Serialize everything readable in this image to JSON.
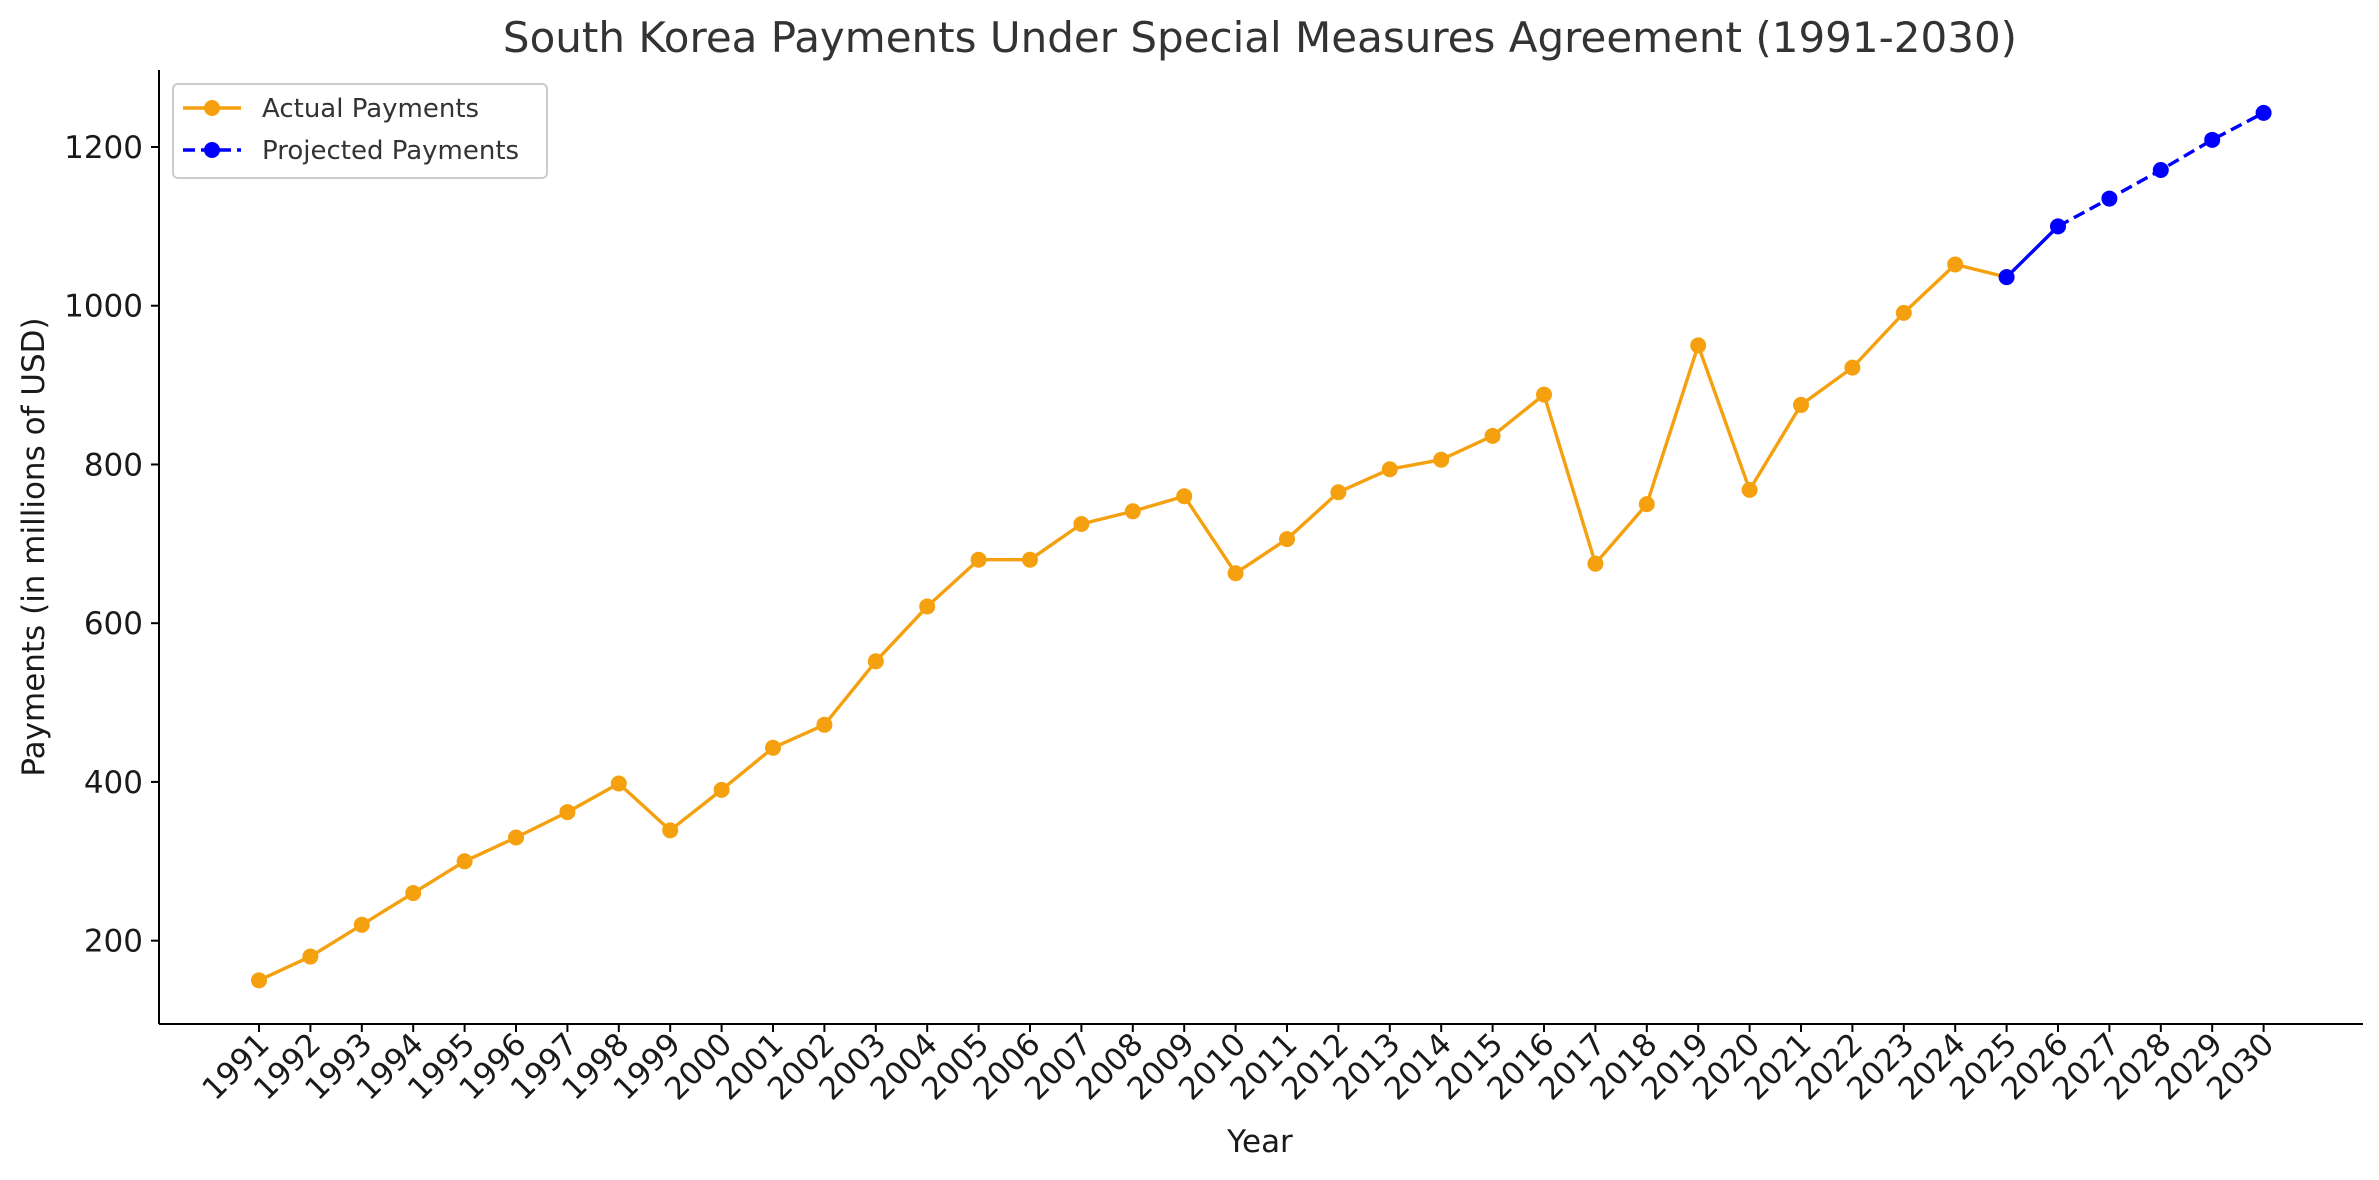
{
  "chart_data": {
    "type": "line",
    "title": "South Korea Payments Under Special Measures Agreement (1991-2030)",
    "xlabel": "Year",
    "ylabel": "Payments (in millions of USD)",
    "ylim": [
      95,
      1297
    ],
    "yticks": [
      200,
      400,
      600,
      800,
      1000,
      1200
    ],
    "grid": false,
    "legend_position": "top-left",
    "categories": [
      "1991",
      "1992",
      "1993",
      "1994",
      "1995",
      "1996",
      "1997",
      "1998",
      "1999",
      "2000",
      "2001",
      "2002",
      "2003",
      "2004",
      "2005",
      "2006",
      "2007",
      "2008",
      "2009",
      "2010",
      "2011",
      "2012",
      "2013",
      "2014",
      "2015",
      "2016",
      "2017",
      "2018",
      "2019",
      "2020",
      "2021",
      "2022",
      "2023",
      "2024",
      "2025",
      "2026",
      "2027",
      "2028",
      "2029",
      "2030"
    ],
    "series": [
      {
        "name": "Actual Payments",
        "color": "#f5a10f",
        "line_style": "solid",
        "marker": "circle",
        "x": [
          "1991",
          "1992",
          "1993",
          "1994",
          "1995",
          "1996",
          "1997",
          "1998",
          "1999",
          "2000",
          "2001",
          "2002",
          "2003",
          "2004",
          "2005",
          "2006",
          "2007",
          "2008",
          "2009",
          "2010",
          "2011",
          "2012",
          "2013",
          "2014",
          "2015",
          "2016",
          "2017",
          "2018",
          "2019",
          "2020",
          "2021",
          "2022",
          "2023",
          "2024",
          "2025"
        ],
        "values": [
          150,
          180,
          220,
          260,
          300,
          330,
          362,
          398,
          339,
          390,
          443,
          472,
          552,
          621,
          680,
          680,
          725,
          741,
          760,
          663,
          706,
          765,
          794,
          806,
          836,
          888,
          675,
          750,
          950,
          768,
          875,
          922,
          991,
          1052,
          1036
        ]
      },
      {
        "name": "Projected Payments",
        "color": "#0000ff",
        "line_style": "dashed",
        "marker": "circle",
        "x": [
          "2025",
          "2026",
          "2027",
          "2028",
          "2029",
          "2030"
        ],
        "values": [
          1036,
          1100,
          1135,
          1171,
          1209,
          1243
        ]
      }
    ]
  }
}
